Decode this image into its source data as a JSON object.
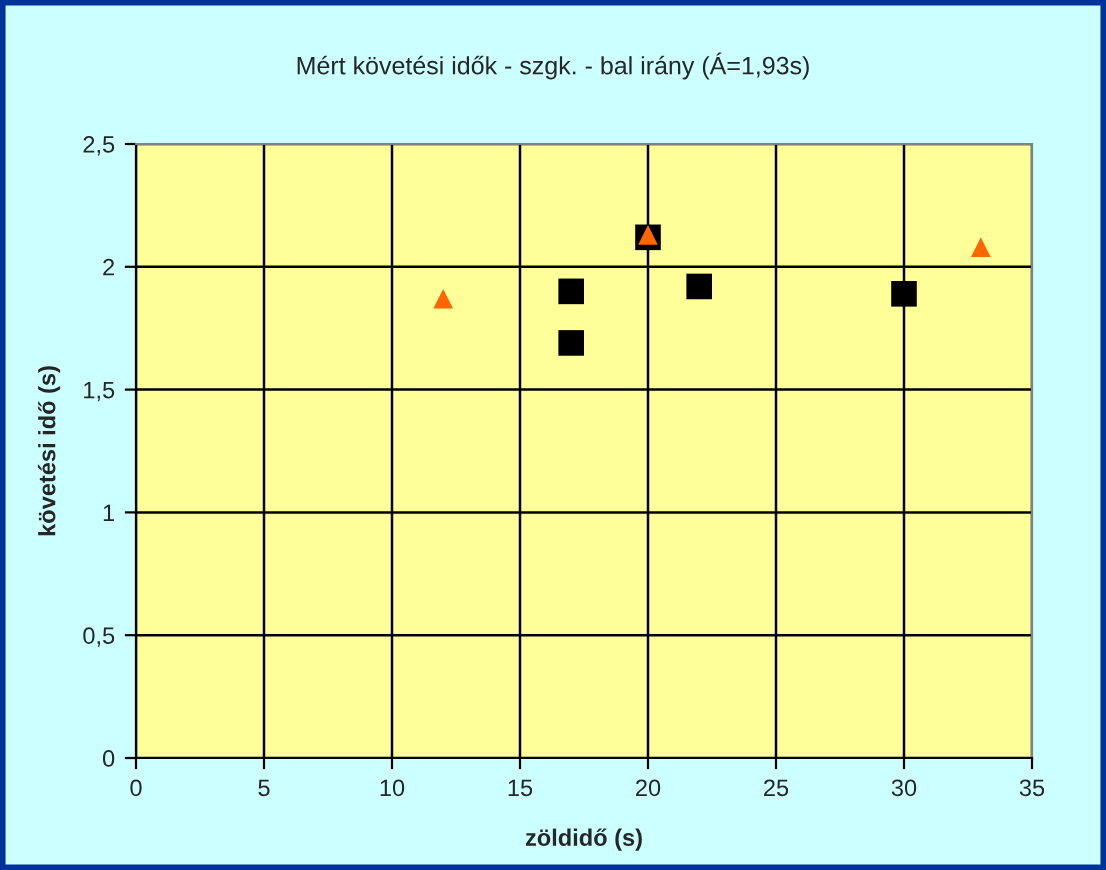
{
  "chart_data": {
    "type": "scatter",
    "title": "Mért követési idők - szgk. - bal irány (Á=1,93s)",
    "xlabel": "zöldidő (s)",
    "ylabel": "követési idő (s)",
    "series": [
      {
        "color": "#000000",
        "marker": "square",
        "x": [
          17,
          17,
          20,
          22,
          30
        ],
        "values": [
          1.9,
          1.69,
          2.12,
          1.92,
          1.89
        ]
      },
      {
        "color": "#ff6600",
        "marker": "triangle",
        "x": [
          12,
          20,
          33
        ],
        "values": [
          1.87,
          2.13,
          2.08
        ]
      }
    ],
    "xlim": [
      0,
      35
    ],
    "xticks": [
      0,
      5,
      10,
      15,
      20,
      25,
      30,
      35
    ],
    "ylim": [
      0,
      2.5
    ],
    "yticks": [
      0,
      {
        "value": 0.5,
        "label": "0,5"
      },
      1,
      {
        "value": 1.5,
        "label": "1,5"
      },
      2,
      {
        "value": 2.5,
        "label": "2,5"
      }
    ],
    "grid": true,
    "legend": false
  }
}
